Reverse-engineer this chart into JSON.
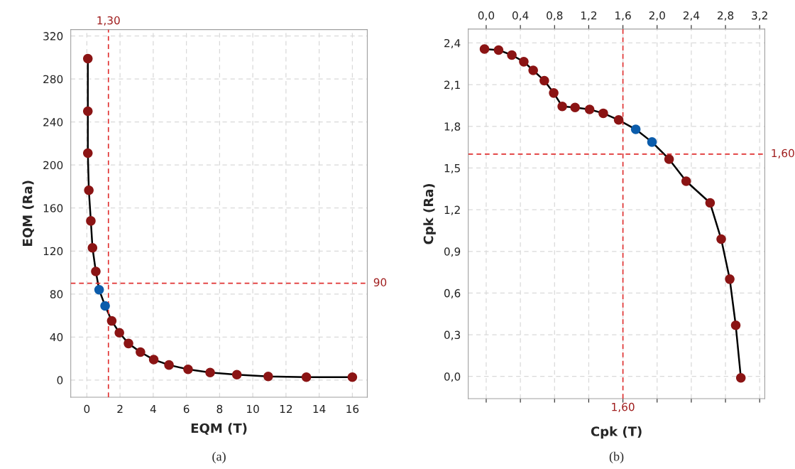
{
  "chart_data": [
    {
      "type": "line",
      "xlabel": "EQM (T)",
      "ylabel": "EQM (Ra)",
      "annotations": [
        "(a)"
      ],
      "xlim": [
        -0.97,
        16.9
      ],
      "ylim": [
        -16,
        326
      ],
      "xticks": [
        0,
        2,
        4,
        6,
        8,
        10,
        12,
        14,
        16
      ],
      "yticks": [
        0,
        40,
        80,
        120,
        160,
        200,
        240,
        280,
        320
      ],
      "grid": true,
      "marker": "circle",
      "line_style": "solid",
      "series": [
        {
          "color": "#000000",
          "colors": [
            "#8b1414",
            "#8b1414",
            "#8b1414",
            "#8b1414",
            "#8b1414",
            "#8b1414",
            "#8b1414",
            "#0b5cab",
            "#0b5cab",
            "#8b1414",
            "#8b1414",
            "#8b1414",
            "#8b1414",
            "#8b1414",
            "#8b1414",
            "#8b1414",
            "#8b1414",
            "#8b1414",
            "#8b1414",
            "#8b1414",
            "#8b1414"
          ],
          "x": [
            0.06,
            0.06,
            0.06,
            0.12,
            0.24,
            0.34,
            0.54,
            0.74,
            1.1,
            1.5,
            1.96,
            2.51,
            3.23,
            4.03,
            4.95,
            6.1,
            7.43,
            9.04,
            10.93,
            13.23,
            16.0
          ],
          "values": [
            299,
            250,
            211,
            176.5,
            148,
            123,
            101,
            84,
            69,
            55,
            44,
            34,
            26,
            19,
            14,
            10,
            7,
            5,
            3.4,
            2.7,
            2.7
          ]
        }
      ],
      "ref_lines": [
        {
          "axis": "x",
          "value": 1.3,
          "label": "1,30",
          "color": "#e03030",
          "line_style": "dashed"
        },
        {
          "axis": "y",
          "value": 90,
          "label": "90",
          "color": "#e03030",
          "line_style": "dashed"
        }
      ]
    },
    {
      "type": "line",
      "xlabel": "Cpk (T)",
      "ylabel": "Cpk (Ra)",
      "annotations": [
        "(b)"
      ],
      "xlim": [
        -0.21,
        3.26
      ],
      "ylim": [
        -0.16,
        2.5
      ],
      "xticks": [
        {
          "value": 0,
          "label": "0,0"
        },
        {
          "value": 0.4,
          "label": "0,4"
        },
        {
          "value": 0.8,
          "label": "0,8"
        },
        {
          "value": 1.2,
          "label": "1,2"
        },
        {
          "value": 1.6,
          "label": "1,6"
        },
        {
          "value": 2.0,
          "label": "2,0"
        },
        {
          "value": 2.4,
          "label": "2,4"
        },
        {
          "value": 2.8,
          "label": "2,8"
        },
        {
          "value": 3.2,
          "label": "3,2"
        }
      ],
      "yticks": [
        {
          "value": 0,
          "label": "0,0"
        },
        {
          "value": 0.3,
          "label": "0,3"
        },
        {
          "value": 0.6,
          "label": "0,6"
        },
        {
          "value": 0.9,
          "label": "0,9"
        },
        {
          "value": 1.2,
          "label": "1,2"
        },
        {
          "value": 1.5,
          "label": "1,5"
        },
        {
          "value": 1.8,
          "label": "1,8"
        },
        {
          "value": 2.1,
          "label": "2,1"
        },
        {
          "value": 2.4,
          "label": "2,4"
        }
      ],
      "grid": true,
      "marker": "circle",
      "line_style": "solid",
      "series": [
        {
          "color": "#000000",
          "colors": [
            "#8b1414",
            "#8b1414",
            "#8b1414",
            "#8b1414",
            "#8b1414",
            "#8b1414",
            "#8b1414",
            "#8b1414",
            "#8b1414",
            "#8b1414",
            "#8b1414",
            "#8b1414",
            "#0b5cab",
            "#0b5cab",
            "#8b1414",
            "#8b1414",
            "#8b1414",
            "#8b1414",
            "#8b1414",
            "#8b1414",
            "#8b1414"
          ],
          "x": [
            -0.02,
            0.145,
            0.3,
            0.44,
            0.55,
            0.68,
            0.79,
            0.89,
            1.04,
            1.21,
            1.37,
            1.55,
            1.75,
            1.94,
            2.14,
            2.34,
            2.62,
            2.75,
            2.85,
            2.92,
            2.98
          ],
          "values": [
            2.356,
            2.349,
            2.313,
            2.265,
            2.203,
            2.129,
            2.04,
            1.943,
            1.936,
            1.922,
            1.894,
            1.846,
            1.778,
            1.687,
            1.564,
            1.405,
            1.249,
            0.988,
            0.7,
            0.368,
            -0.01
          ]
        }
      ],
      "ref_lines": [
        {
          "axis": "x",
          "value": 1.6,
          "label": "1,60",
          "color": "#e03030",
          "line_style": "dashed"
        },
        {
          "axis": "y",
          "value": 1.6,
          "label": "1,60",
          "color": "#e03030",
          "line_style": "dashed"
        }
      ]
    }
  ]
}
